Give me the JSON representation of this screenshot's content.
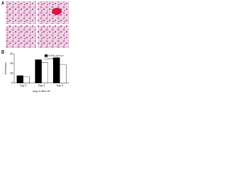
{
  "figure": {
    "panel_a": "A",
    "panel_b": "B"
  },
  "chart_data": {
    "type": "bar",
    "ylabel": "% Airspace",
    "xlabel": "Days in 85% O2",
    "categories": [
      "Day 0",
      "Day 4",
      "Day 8"
    ],
    "series": [
      {
        "name": "Ilk fl/fl LysM Cre",
        "color": "#000000",
        "values": [
          15,
          48,
          52
        ]
      },
      {
        "name": "Ilk fl/fl",
        "color": "#ffffff",
        "values": [
          12,
          42,
          38
        ]
      }
    ],
    "ylim": [
      0,
      60
    ],
    "yticks": [
      0,
      20,
      40,
      60
    ],
    "grid": false,
    "legend": "top-right"
  }
}
